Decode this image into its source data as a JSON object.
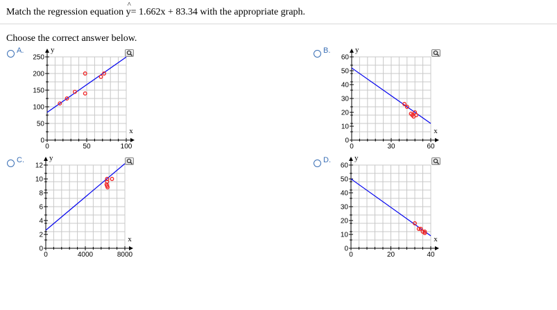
{
  "question": {
    "prefix": "Match the regression equation",
    "y_var": "y",
    "hat": "^",
    "equation_rest": "= 1.662x + 83.34 with the appropriate graph.",
    "prompt": "Choose the correct answer below."
  },
  "options": [
    {
      "letter": "A.",
      "chart_data": {
        "type": "scatter",
        "xlabel": "x",
        "ylabel": "y",
        "xlim": [
          0,
          100
        ],
        "ylim": [
          0,
          250
        ],
        "x_ticks": [
          "0",
          "50",
          "100"
        ],
        "y_ticks": [
          "0",
          "50",
          "100",
          "150",
          "200",
          "250"
        ],
        "x_tick_values": [
          0,
          50,
          100
        ],
        "y_tick_values": [
          0,
          50,
          100,
          150,
          200,
          250
        ],
        "grid": true,
        "points": [
          [
            16,
            110
          ],
          [
            25,
            125
          ],
          [
            35,
            145
          ],
          [
            48,
            140
          ],
          [
            48,
            200
          ],
          [
            68,
            190
          ],
          [
            72,
            200
          ]
        ],
        "line": [
          [
            0,
            83.34
          ],
          [
            100,
            249.54
          ]
        ],
        "line_color": "#0000ee",
        "point_color": "#ee2222"
      }
    },
    {
      "letter": "B.",
      "chart_data": {
        "type": "scatter",
        "xlabel": "x",
        "ylabel": "y",
        "xlim": [
          0,
          60
        ],
        "ylim": [
          0,
          60
        ],
        "x_ticks": [
          "0",
          "30",
          "60"
        ],
        "y_ticks": [
          "0",
          "10",
          "20",
          "30",
          "40",
          "50",
          "60"
        ],
        "x_tick_values": [
          0,
          30,
          60
        ],
        "y_tick_values": [
          0,
          10,
          20,
          30,
          40,
          50,
          60
        ],
        "grid": true,
        "points": [
          [
            40,
            26
          ],
          [
            42,
            24
          ],
          [
            45,
            19
          ],
          [
            46,
            18
          ],
          [
            48,
            20
          ],
          [
            49,
            18
          ],
          [
            47,
            17
          ]
        ],
        "line": [
          [
            0,
            52
          ],
          [
            60,
            12
          ]
        ],
        "line_color": "#0000ee",
        "point_color": "#ee2222"
      }
    },
    {
      "letter": "C.",
      "chart_data": {
        "type": "scatter",
        "xlabel": "x",
        "ylabel": "y",
        "xlim": [
          0,
          8000
        ],
        "ylim": [
          0,
          12
        ],
        "x_ticks": [
          "0",
          "4000",
          "8000"
        ],
        "y_ticks": [
          "0",
          "2",
          "4",
          "6",
          "8",
          "10",
          "12"
        ],
        "x_tick_values": [
          0,
          4000,
          8000
        ],
        "y_tick_values": [
          0,
          2,
          4,
          6,
          8,
          10,
          12
        ],
        "grid": true,
        "points": [
          [
            6200,
            10
          ],
          [
            6200,
            9.6
          ],
          [
            6150,
            9.2
          ],
          [
            6200,
            9
          ],
          [
            6250,
            8.8
          ],
          [
            6700,
            10
          ]
        ],
        "line": [
          [
            0,
            2.6
          ],
          [
            8000,
            12.2
          ]
        ],
        "line_color": "#0000ee",
        "point_color": "#ee2222"
      }
    },
    {
      "letter": "D.",
      "chart_data": {
        "type": "scatter",
        "xlabel": "x",
        "ylabel": "y",
        "xlim": [
          0,
          40
        ],
        "ylim": [
          0,
          60
        ],
        "x_ticks": [
          "0",
          "20",
          "40"
        ],
        "y_ticks": [
          "0",
          "10",
          "20",
          "30",
          "40",
          "50",
          "60"
        ],
        "x_tick_values": [
          0,
          20,
          40
        ],
        "y_tick_values": [
          0,
          10,
          20,
          30,
          40,
          50,
          60
        ],
        "grid": true,
        "points": [
          [
            32,
            18
          ],
          [
            34,
            14
          ],
          [
            35,
            14
          ],
          [
            36,
            12
          ],
          [
            37,
            11
          ],
          [
            37,
            12
          ]
        ],
        "line": [
          [
            0,
            50
          ],
          [
            40,
            9
          ]
        ],
        "line_color": "#0000ee",
        "point_color": "#ee2222"
      }
    }
  ]
}
